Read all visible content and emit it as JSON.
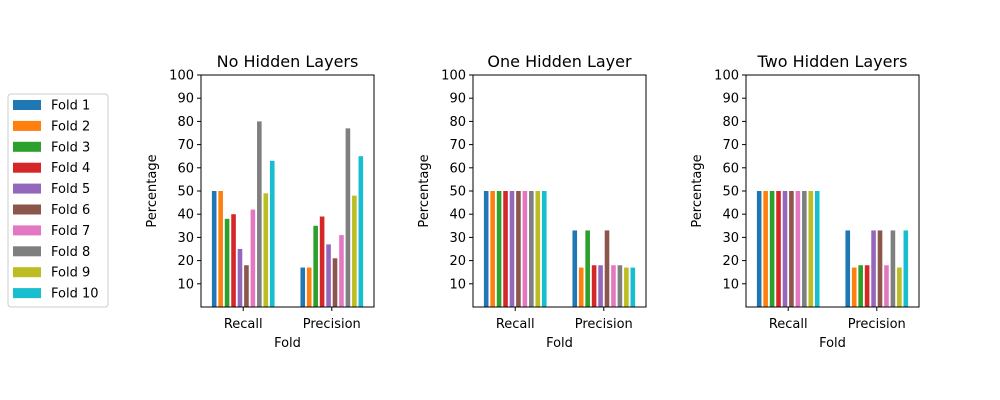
{
  "legend": {
    "placement": "left",
    "entries": [
      {
        "label": "Fold 1",
        "color": "#1f77b4"
      },
      {
        "label": "Fold 2",
        "color": "#ff7f0e"
      },
      {
        "label": "Fold 3",
        "color": "#2ca02c"
      },
      {
        "label": "Fold 4",
        "color": "#d62728"
      },
      {
        "label": "Fold 5",
        "color": "#9467bd"
      },
      {
        "label": "Fold 6",
        "color": "#8c564b"
      },
      {
        "label": "Fold 7",
        "color": "#e377c2"
      },
      {
        "label": "Fold 8",
        "color": "#7f7f7f"
      },
      {
        "label": "Fold 9",
        "color": "#bcbd22"
      },
      {
        "label": "Fold 10",
        "color": "#17becf"
      }
    ]
  },
  "chart_data": [
    {
      "type": "bar",
      "title": "No Hidden Layers",
      "xlabel": "Fold",
      "ylabel": "Percentage",
      "categories": [
        "Recall",
        "Precision"
      ],
      "yticks": [
        "10",
        "20",
        "30",
        "40",
        "50",
        "60",
        "70",
        "80",
        "90",
        "100"
      ],
      "ylim": [
        0,
        100
      ],
      "grid": false,
      "series": [
        {
          "name": "Fold 1",
          "values": [
            50,
            17
          ]
        },
        {
          "name": "Fold 2",
          "values": [
            50,
            17
          ]
        },
        {
          "name": "Fold 3",
          "values": [
            38,
            35
          ]
        },
        {
          "name": "Fold 4",
          "values": [
            40,
            39
          ]
        },
        {
          "name": "Fold 5",
          "values": [
            25,
            27
          ]
        },
        {
          "name": "Fold 6",
          "values": [
            18,
            21
          ]
        },
        {
          "name": "Fold 7",
          "values": [
            42,
            31
          ]
        },
        {
          "name": "Fold 8",
          "values": [
            80,
            77
          ]
        },
        {
          "name": "Fold 9",
          "values": [
            49,
            48
          ]
        },
        {
          "name": "Fold 10",
          "values": [
            63,
            65
          ]
        }
      ]
    },
    {
      "type": "bar",
      "title": "One Hidden Layer",
      "xlabel": "Fold",
      "ylabel": "Percentage",
      "categories": [
        "Recall",
        "Precision"
      ],
      "yticks": [
        "10",
        "20",
        "30",
        "40",
        "50",
        "60",
        "70",
        "80",
        "90",
        "100"
      ],
      "ylim": [
        0,
        100
      ],
      "grid": false,
      "series": [
        {
          "name": "Fold 1",
          "values": [
            50,
            33
          ]
        },
        {
          "name": "Fold 2",
          "values": [
            50,
            17
          ]
        },
        {
          "name": "Fold 3",
          "values": [
            50,
            33
          ]
        },
        {
          "name": "Fold 4",
          "values": [
            50,
            18
          ]
        },
        {
          "name": "Fold 5",
          "values": [
            50,
            18
          ]
        },
        {
          "name": "Fold 6",
          "values": [
            50,
            33
          ]
        },
        {
          "name": "Fold 7",
          "values": [
            50,
            18
          ]
        },
        {
          "name": "Fold 8",
          "values": [
            50,
            18
          ]
        },
        {
          "name": "Fold 9",
          "values": [
            50,
            17
          ]
        },
        {
          "name": "Fold 10",
          "values": [
            50,
            17
          ]
        }
      ]
    },
    {
      "type": "bar",
      "title": "Two Hidden Layers",
      "xlabel": "Fold",
      "ylabel": "Percentage",
      "categories": [
        "Recall",
        "Precision"
      ],
      "yticks": [
        "10",
        "20",
        "30",
        "40",
        "50",
        "60",
        "70",
        "80",
        "90",
        "100"
      ],
      "ylim": [
        0,
        100
      ],
      "grid": false,
      "series": [
        {
          "name": "Fold 1",
          "values": [
            50,
            33
          ]
        },
        {
          "name": "Fold 2",
          "values": [
            50,
            17
          ]
        },
        {
          "name": "Fold 3",
          "values": [
            50,
            18
          ]
        },
        {
          "name": "Fold 4",
          "values": [
            50,
            18
          ]
        },
        {
          "name": "Fold 5",
          "values": [
            50,
            33
          ]
        },
        {
          "name": "Fold 6",
          "values": [
            50,
            33
          ]
        },
        {
          "name": "Fold 7",
          "values": [
            50,
            18
          ]
        },
        {
          "name": "Fold 8",
          "values": [
            50,
            33
          ]
        },
        {
          "name": "Fold 9",
          "values": [
            50,
            17
          ]
        },
        {
          "name": "Fold 10",
          "values": [
            50,
            33
          ]
        }
      ]
    }
  ]
}
